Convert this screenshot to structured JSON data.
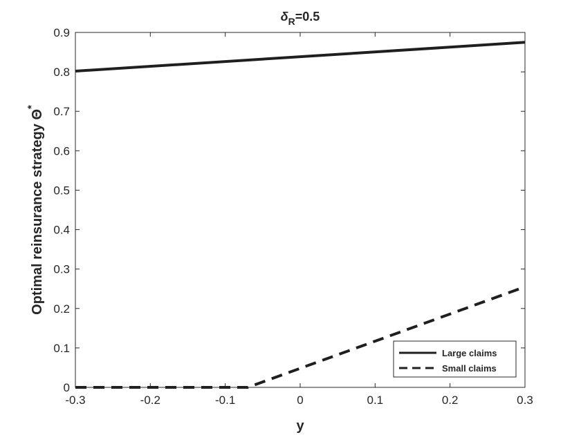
{
  "chart_data": {
    "type": "line",
    "title": {
      "symbol": "δ",
      "subscript": "R",
      "value": "=0.5"
    },
    "xlabel": "y",
    "ylabel": {
      "text": "Optimal reinsurance strategy Θ",
      "superscript": "*"
    },
    "xlim": [
      -0.3,
      0.3
    ],
    "ylim": [
      0,
      0.9
    ],
    "xticks": [
      -0.3,
      -0.2,
      -0.1,
      0,
      0.1,
      0.2,
      0.3
    ],
    "xtick_labels": [
      "-0.3",
      "-0.2",
      "-0.1",
      "0",
      "0.1",
      "0.2",
      "0.3"
    ],
    "yticks": [
      0,
      0.1,
      0.2,
      0.3,
      0.4,
      0.5,
      0.6,
      0.7,
      0.8,
      0.9
    ],
    "ytick_labels": [
      "0",
      "0.1",
      "0.2",
      "0.3",
      "0.4",
      "0.5",
      "0.6",
      "0.7",
      "0.8",
      "0.9"
    ],
    "grid": false,
    "legend": {
      "placement": "bottom-right"
    },
    "series": [
      {
        "name": "Large claims",
        "style": "solid",
        "color": "#1f1f1f",
        "x": [
          -0.3,
          0.3
        ],
        "y": [
          0.802,
          0.875
        ]
      },
      {
        "name": "Small claims",
        "style": "dashed",
        "color": "#1f1f1f",
        "x": [
          -0.3,
          -0.07,
          0.3
        ],
        "y": [
          0,
          0,
          0.255
        ]
      }
    ]
  }
}
